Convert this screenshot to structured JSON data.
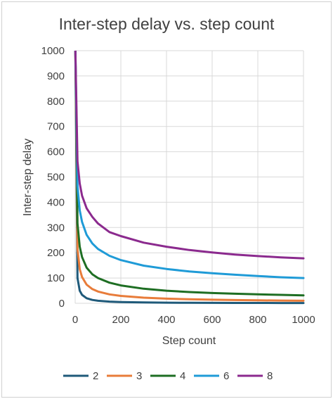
{
  "chart_data": {
    "type": "line",
    "title": "Inter-step delay vs. step count",
    "xlabel": "Step count",
    "ylabel": "Inter-step delay",
    "xlim": [
      0,
      1000
    ],
    "ylim": [
      0,
      1000
    ],
    "xticks": [
      0,
      200,
      400,
      600,
      800,
      1000
    ],
    "yticks": [
      0,
      100,
      200,
      300,
      400,
      500,
      600,
      700,
      800,
      900,
      1000
    ],
    "grid": true,
    "legend_position": "bottom",
    "x": [
      1,
      10,
      20,
      30,
      50,
      75,
      100,
      150,
      200,
      300,
      400,
      500,
      600,
      700,
      800,
      900,
      1000
    ],
    "series": [
      {
        "name": "2",
        "color": "#1f5a7a",
        "values": [
          1000,
          100,
          50,
          33.3,
          20,
          13.3,
          10,
          6.7,
          5,
          3.3,
          2.5,
          2,
          1.7,
          1.4,
          1.3,
          1.1,
          1
        ]
      },
      {
        "name": "3",
        "color": "#e87c3a",
        "values": [
          1000,
          215,
          135,
          104,
          73.7,
          56.2,
          46.4,
          35.4,
          29.2,
          22.3,
          18.4,
          15.9,
          14.1,
          12.7,
          11.6,
          10.8,
          10
        ]
      },
      {
        "name": "4",
        "color": "#1e6e23",
        "values": [
          1000,
          316,
          224,
          183,
          141,
          115,
          100,
          81.6,
          70.7,
          57.7,
          50,
          44.7,
          40.8,
          37.8,
          35.4,
          33.3,
          31.6
        ]
      },
      {
        "name": "6",
        "color": "#1f9bd7",
        "values": [
          1000,
          464,
          368,
          322,
          271,
          237,
          215,
          188,
          171,
          149,
          136,
          126,
          119,
          113,
          108,
          103,
          100
        ]
      },
      {
        "name": "8",
        "color": "#8b2a8e",
        "values": [
          1000,
          562,
          474,
          426,
          376,
          342,
          316,
          282,
          266,
          240,
          224,
          211,
          201,
          193,
          187,
          182,
          178
        ]
      }
    ]
  }
}
